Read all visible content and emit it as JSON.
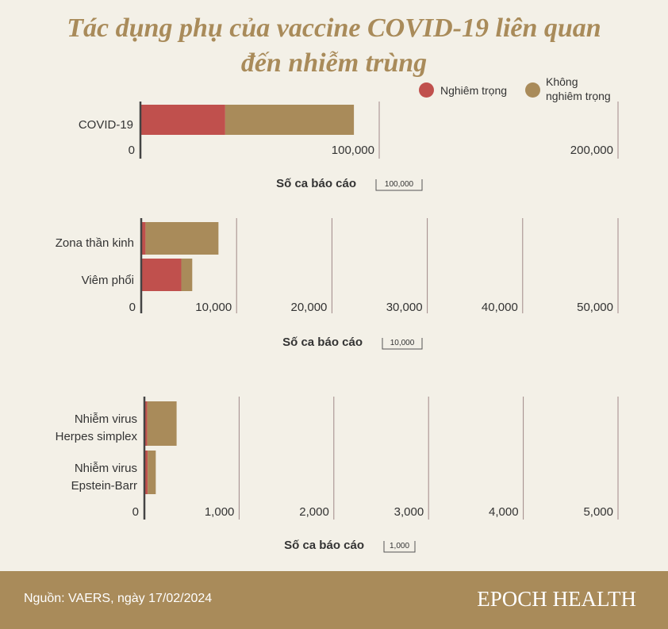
{
  "chart_data": {
    "type": "bar",
    "title": "Tác dụng phụ của vaccine COVID-19 liên quan đến nhiễm trùng",
    "title_lines": [
      "Tác dụng phụ của vaccine COVID-19 liên quan",
      "đến nhiễm trùng"
    ],
    "legend": [
      {
        "name": "Nghiêm trọng",
        "color": "#c0504d"
      },
      {
        "name": "Không nghiêm trọng",
        "lines": [
          "Không",
          "nghiêm trọng"
        ],
        "color": "#a98b5a"
      }
    ],
    "legend_placement": "top-right",
    "panels": [
      {
        "categories": [
          {
            "label": [
              "COVID-19"
            ],
            "serious": 35500,
            "non_serious": 53900
          }
        ],
        "xmax": 200000,
        "ticks": [
          0,
          100000,
          200000
        ],
        "tick_labels": [
          "0",
          "100,000",
          "200,000"
        ],
        "xlabel": "Số ca báo cáo",
        "scale_label": "100,000"
      },
      {
        "categories": [
          {
            "label": [
              "Zona thần kinh"
            ],
            "serious": 450,
            "non_serious": 7650
          },
          {
            "label": [
              "Viêm phổi"
            ],
            "serious": 4200,
            "non_serious": 1150
          }
        ],
        "xmax": 50000,
        "ticks": [
          0,
          10000,
          20000,
          30000,
          40000,
          50000
        ],
        "tick_labels": [
          "0",
          "10,000",
          "20,000",
          "30,000",
          "40,000",
          "50,000"
        ],
        "xlabel": "Số ca báo cáo",
        "scale_label": "10,000"
      },
      {
        "categories": [
          {
            "label": [
              "Nhiễm virus",
              "Herpes simplex"
            ],
            "serious": 30,
            "non_serious": 310
          },
          {
            "label": [
              "Nhiễm virus",
              "Epstein-Barr"
            ],
            "serious": 35,
            "non_serious": 85
          }
        ],
        "xmax": 5000,
        "ticks": [
          0,
          1000,
          2000,
          3000,
          4000,
          5000
        ],
        "tick_labels": [
          "0",
          "1,000",
          "2,000",
          "3,000",
          "4,000",
          "5,000"
        ],
        "xlabel": "Số ca báo cáo",
        "scale_label": "1,000"
      }
    ]
  },
  "footer": {
    "source": "Nguồn: VAERS, ngày 17/02/2024",
    "brand": "EPOCH HEALTH"
  }
}
